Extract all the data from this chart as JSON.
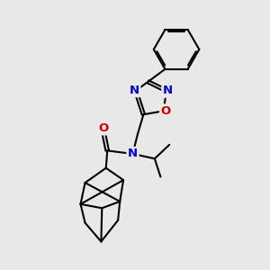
{
  "background_color": "#e8e8e8",
  "bond_color": "#000000",
  "bond_width": 1.5,
  "atom_colors": {
    "N": "#0000cc",
    "O": "#cc0000",
    "C": "#000000"
  },
  "font_size_atoms": 9.5,
  "figsize": [
    3.0,
    3.0
  ],
  "dpi": 100
}
